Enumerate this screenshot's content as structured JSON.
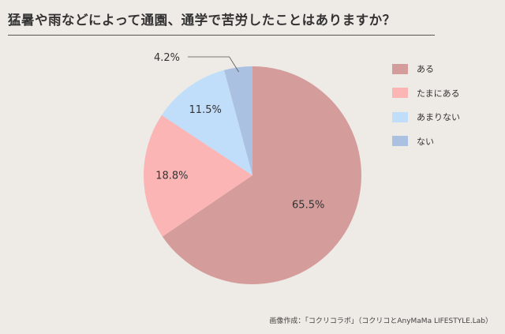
{
  "title": "猛暑や雨などによって通園、通学で苦労したことはありますか？",
  "credit": "画像作成：「コクリコラボ」（コクリコとAnyMaMa LIFESTYLE.Lab）",
  "chart_data": {
    "type": "pie",
    "categories": [
      "ある",
      "たまにある",
      "あまりない",
      "ない"
    ],
    "values": [
      65.5,
      18.8,
      11.5,
      4.2
    ],
    "value_labels": [
      "65.5%",
      "18.8%",
      "11.5%",
      "4.2%"
    ],
    "colors": [
      "#d49c9b",
      "#fbb5b5",
      "#c0defa",
      "#abc1e1"
    ],
    "start": "12 o'clock",
    "direction": "clockwise",
    "legend_position": "right"
  },
  "legend": {
    "items": [
      {
        "label": "ある",
        "color": "#d49c9b"
      },
      {
        "label": "たまにある",
        "color": "#fbb5b5"
      },
      {
        "label": "あまりない",
        "color": "#c0defa"
      },
      {
        "label": "ない",
        "color": "#abc1e1"
      }
    ]
  }
}
